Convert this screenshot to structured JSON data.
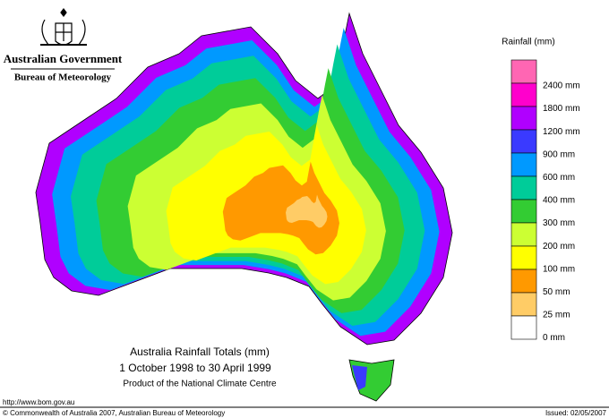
{
  "header": {
    "government": "Australian Government",
    "bureau": "Bureau of Meteorology"
  },
  "map": {
    "title": "Australia Rainfall Totals (mm)",
    "period": "1 October 1998 to 30 April 1999",
    "credit": "Product of the National Climate Centre"
  },
  "legend": {
    "title": "Rainfall (mm)",
    "colors": [
      "#ff66b3",
      "#ff00cc",
      "#b000ff",
      "#3a3aff",
      "#0099ff",
      "#00cc99",
      "#33cc33",
      "#ccff33",
      "#ffff00",
      "#ff9900",
      "#ffcc66",
      "#ffffff"
    ],
    "labels": [
      "2400 mm",
      "1800 mm",
      "1200 mm",
      "900 mm",
      "600 mm",
      "400 mm",
      "300 mm",
      "200 mm",
      "100 mm",
      "50 mm",
      "25 mm",
      "0 mm"
    ]
  },
  "footer": {
    "url": "http://www.bom.gov.au",
    "copyright": "© Commonwealth of Australia 2007, Australian Bureau of Meteorology",
    "issued": "Issued: 02/05/2007"
  }
}
